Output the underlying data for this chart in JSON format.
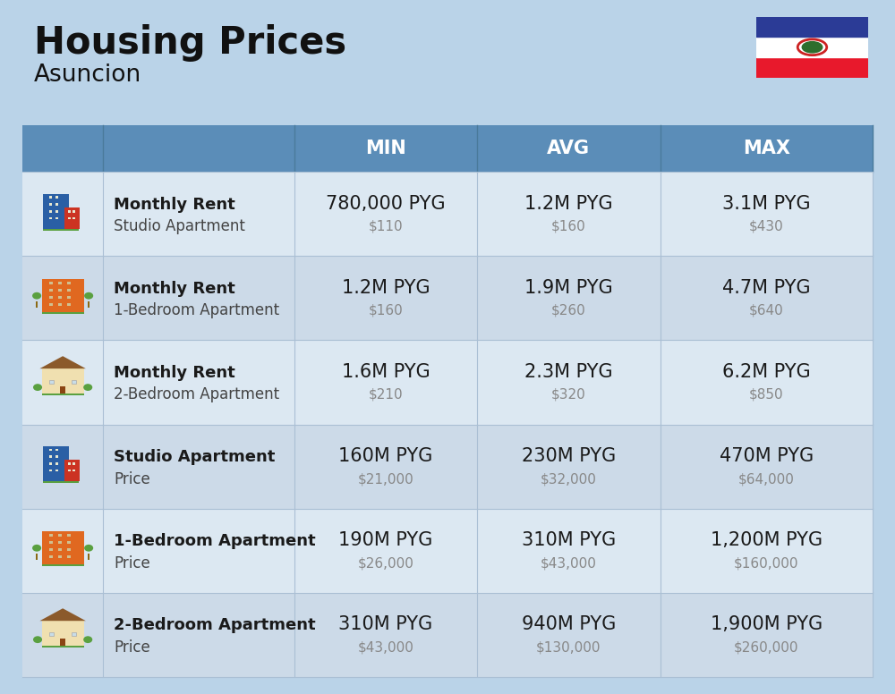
{
  "title": "Housing Prices",
  "subtitle": "Asuncion",
  "background_color": "#bad3e8",
  "header_bg_color": "#5b8db8",
  "header_text_color": "#ffffff",
  "col_headers": [
    "MIN",
    "AVG",
    "MAX"
  ],
  "rows": [
    {
      "label_bold": "Monthly Rent",
      "label_sub": "Studio Apartment",
      "min_pyg": "780,000 PYG",
      "min_usd": "$110",
      "avg_pyg": "1.2M PYG",
      "avg_usd": "$160",
      "max_pyg": "3.1M PYG",
      "max_usd": "$430",
      "icon_type": "blue_office"
    },
    {
      "label_bold": "Monthly Rent",
      "label_sub": "1-Bedroom Apartment",
      "min_pyg": "1.2M PYG",
      "min_usd": "$160",
      "avg_pyg": "1.9M PYG",
      "avg_usd": "$260",
      "max_pyg": "4.7M PYG",
      "max_usd": "$640",
      "icon_type": "orange_apt"
    },
    {
      "label_bold": "Monthly Rent",
      "label_sub": "2-Bedroom Apartment",
      "min_pyg": "1.6M PYG",
      "min_usd": "$210",
      "avg_pyg": "2.3M PYG",
      "avg_usd": "$320",
      "max_pyg": "6.2M PYG",
      "max_usd": "$850",
      "icon_type": "tan_house"
    },
    {
      "label_bold": "Studio Apartment",
      "label_sub": "Price",
      "min_pyg": "160M PYG",
      "min_usd": "$21,000",
      "avg_pyg": "230M PYG",
      "avg_usd": "$32,000",
      "max_pyg": "470M PYG",
      "max_usd": "$64,000",
      "icon_type": "blue_office"
    },
    {
      "label_bold": "1-Bedroom Apartment",
      "label_sub": "Price",
      "min_pyg": "190M PYG",
      "min_usd": "$26,000",
      "avg_pyg": "310M PYG",
      "avg_usd": "$43,000",
      "max_pyg": "1,200M PYG",
      "max_usd": "$160,000",
      "icon_type": "orange_apt"
    },
    {
      "label_bold": "2-Bedroom Apartment",
      "label_sub": "Price",
      "min_pyg": "310M PYG",
      "min_usd": "$43,000",
      "avg_pyg": "940M PYG",
      "avg_usd": "$130,000",
      "max_pyg": "1,900M PYG",
      "max_usd": "$260,000",
      "icon_type": "tan_house"
    }
  ],
  "flag_colors": [
    "#e8192c",
    "#ffffff",
    "#2b3b96"
  ],
  "usd_color": "#888888",
  "pyg_color": "#1a1a1a",
  "label_bold_color": "#1a1a1a",
  "label_sub_color": "#444444",
  "row_colors": [
    "#dce8f2",
    "#ccdae8",
    "#dce8f2",
    "#ccdae8",
    "#dce8f2",
    "#ccdae8"
  ],
  "separator_color": "#aabfd4",
  "title_fontsize": 30,
  "subtitle_fontsize": 19,
  "header_fontsize": 15,
  "pyg_fontsize": 15,
  "usd_fontsize": 11,
  "label_bold_fontsize": 13,
  "label_sub_fontsize": 12
}
